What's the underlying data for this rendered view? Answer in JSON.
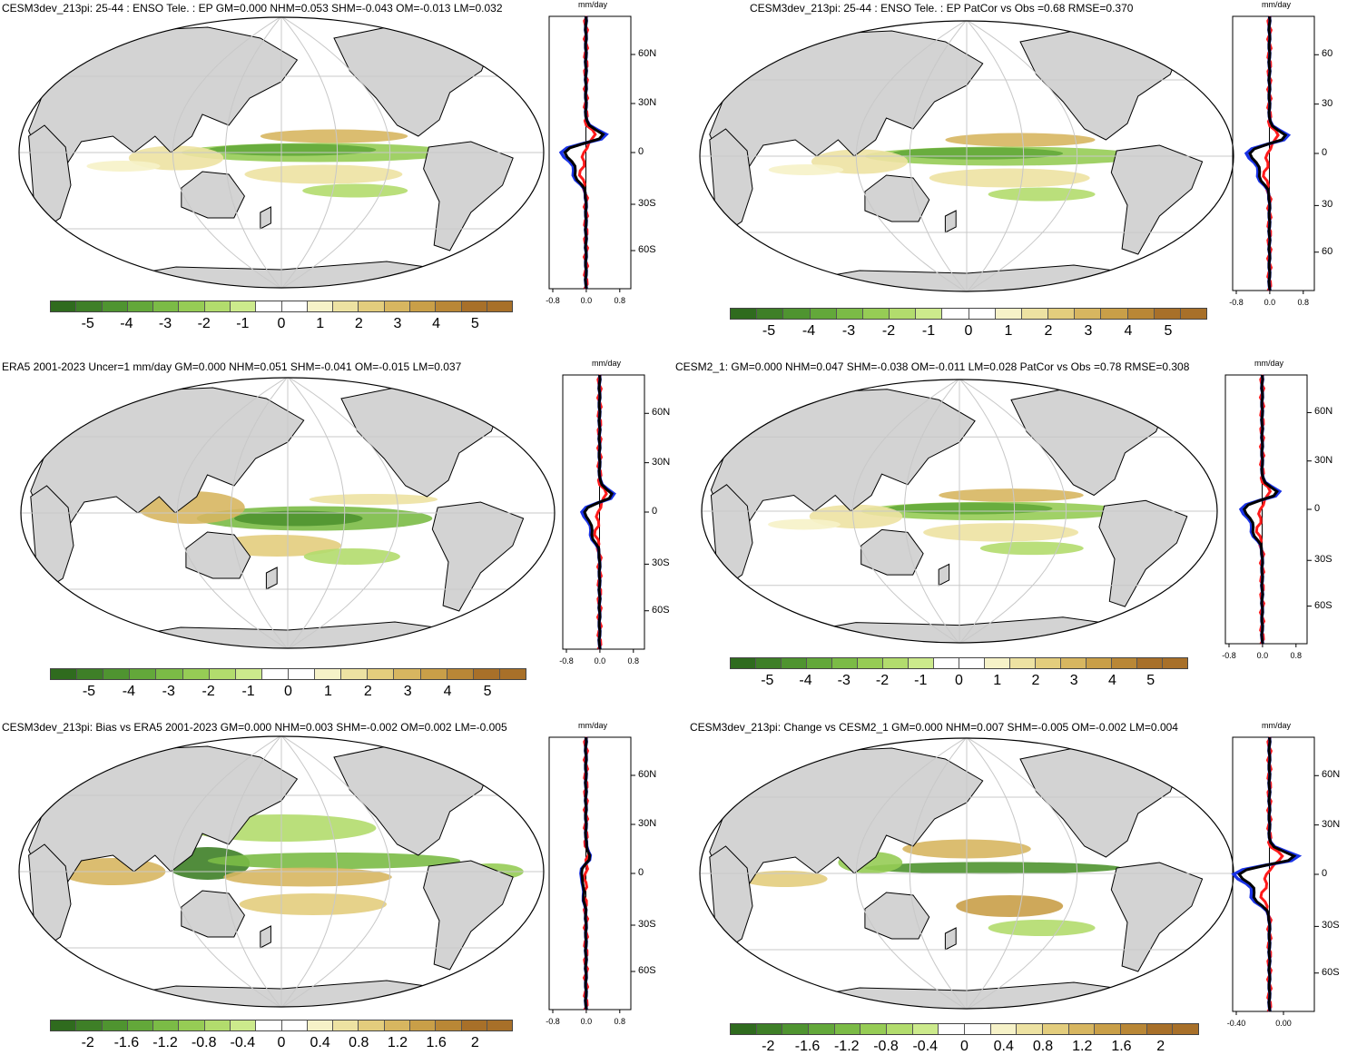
{
  "colors": {
    "land": "#d3d3d3",
    "ocean": "#ffffff",
    "grid": "#c8c8c8",
    "line_model": "#000000",
    "line_obs": "#ff1a1a",
    "line_ref": "#1a33e6",
    "palette_main": [
      "#2f6b1e",
      "#3e7f27",
      "#4f9430",
      "#63a83a",
      "#7bbb46",
      "#96cc55",
      "#b2dc6d",
      "#ccea8c",
      "#ffffff",
      "#f6f2c8",
      "#ede2a2",
      "#e3cd7d",
      "#d7b660",
      "#c99f48",
      "#b98736",
      "#a87029"
    ]
  },
  "units": "mm/day",
  "panels": [
    {
      "id": "p1",
      "title": "CESM3dev_213pi: 25-44 : ENSO Tele. : EP GM=0.000 NHM=0.053 SHM=-0.043 OM=-0.013 LM=0.032",
      "colorbar_ticks": [
        "-5",
        "-4",
        "-3",
        "-2",
        "-1",
        "0",
        "1",
        "2",
        "3",
        "4",
        "5"
      ],
      "zonal_x_ticks": [
        "-0.8",
        "0.0",
        "0.8"
      ],
      "lat_ticks": [
        "60N",
        "30N",
        "0",
        "30S",
        "60S"
      ]
    },
    {
      "id": "p2",
      "title": "CESM3dev_213pi: 25-44 : ENSO Tele. : EP PatCor vs Obs =0.68 RMSE=0.370",
      "colorbar_ticks": [
        "-5",
        "-4",
        "-3",
        "-2",
        "-1",
        "0",
        "1",
        "2",
        "3",
        "4",
        "5"
      ],
      "zonal_x_ticks": [
        "-0.8",
        "0.0",
        "0.8"
      ],
      "lat_ticks": [
        "60",
        "30",
        "0",
        "30",
        "60"
      ]
    },
    {
      "id": "p3",
      "title": "ERA5 2001-2023 Uncer=1 mm/day GM=0.000 NHM=0.051 SHM=-0.041 OM=-0.015 LM=0.037",
      "colorbar_ticks": [
        "-5",
        "-4",
        "-3",
        "-2",
        "-1",
        "0",
        "1",
        "2",
        "3",
        "4",
        "5"
      ],
      "zonal_x_ticks": [
        "-0.8",
        "0.0",
        "0.8"
      ],
      "lat_ticks": [
        "60N",
        "30N",
        "0",
        "30S",
        "60S"
      ]
    },
    {
      "id": "p4",
      "title": "CESM2_1: GM=0.000 NHM=0.047 SHM=-0.038 OM=-0.011 LM=0.028 PatCor vs Obs =0.78 RMSE=0.308",
      "colorbar_ticks": [
        "-5",
        "-4",
        "-3",
        "-2",
        "-1",
        "0",
        "1",
        "2",
        "3",
        "4",
        "5"
      ],
      "zonal_x_ticks": [
        "-0.8",
        "0.0",
        "0.8"
      ],
      "lat_ticks": [
        "60N",
        "30N",
        "0",
        "30S",
        "60S"
      ]
    },
    {
      "id": "p5",
      "title": "CESM3dev_213pi: Bias vs ERA5 2001-2023 GM=0.000 NHM=0.003 SHM=-0.002 OM=0.002 LM=-0.005",
      "colorbar_ticks": [
        "-2",
        "-1.6",
        "-1.2",
        "-0.8",
        "-0.4",
        "0",
        "0.4",
        "0.8",
        "1.2",
        "1.6",
        "2"
      ],
      "zonal_x_ticks": [
        "-0.8",
        "0.0",
        "0.8"
      ],
      "lat_ticks": [
        "60N",
        "30N",
        "0",
        "30S",
        "60S"
      ]
    },
    {
      "id": "p6",
      "title": "CESM3dev_213pi: Change vs CESM2_1 GM=0.000 NHM=0.007 SHM=-0.005 OM=-0.002 LM=0.004",
      "colorbar_ticks": [
        "-2",
        "-1.6",
        "-1.2",
        "-0.8",
        "-0.4",
        "0",
        "0.4",
        "0.8",
        "1.2",
        "1.6",
        "2"
      ],
      "zonal_x_ticks": [
        "-0.40",
        "0.00"
      ],
      "lat_ticks": [
        "60N",
        "30N",
        "0",
        "30S",
        "60S"
      ]
    }
  ]
}
